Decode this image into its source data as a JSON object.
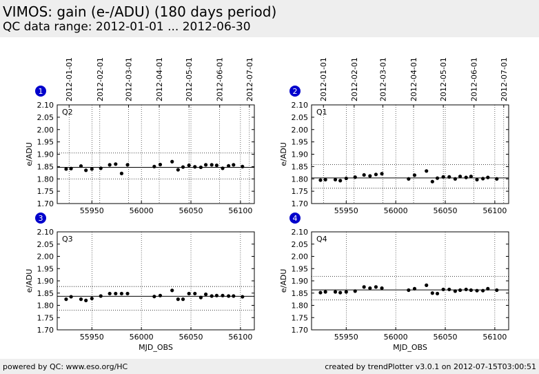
{
  "header": {
    "title": "VIMOS: gain (e-/ADU) (180 days period)",
    "subtitle": "QC data range: 2012-01-01 ... 2012-06-30"
  },
  "footer": {
    "left": "powered by QC: www.eso.org/HC",
    "right": "created by trendPlotter v3.0.1 on 2012-07-15T03:00:51"
  },
  "colors": {
    "panel_background": "#eeeeee",
    "marker_badge": "#0000cc",
    "data": "#000000"
  },
  "chart_data": [
    {
      "type": "scatter",
      "badge": "1",
      "label": "Q2",
      "ylabel": "e/ADU",
      "xlabel": "",
      "xlim": [
        55915,
        56114
      ],
      "ylim": [
        1.7,
        2.1
      ],
      "yticks": [
        "1.70",
        "1.75",
        "1.80",
        "1.85",
        "1.90",
        "1.95",
        "2.00",
        "2.05",
        "2.10"
      ],
      "xticks": [
        "55950",
        "56000",
        "56050",
        "56100"
      ],
      "date_ticks": [
        "2012-01-01",
        "2012-02-01",
        "2012-03-01",
        "2012-04-01",
        "2012-05-01",
        "2012-06-01",
        "2012-07-01"
      ],
      "mean": 1.847,
      "lower": 1.8,
      "upper": 1.905,
      "x": [
        55924,
        55929,
        55939,
        55944,
        55950,
        55959,
        55968,
        55974,
        55980,
        55986,
        56013,
        56019,
        56031,
        56037,
        56042,
        56048,
        56054,
        56060,
        56065,
        56071,
        56076,
        56082,
        56088,
        56093,
        56102
      ],
      "y": [
        1.84,
        1.842,
        1.852,
        1.835,
        1.84,
        1.843,
        1.857,
        1.86,
        1.822,
        1.857,
        1.85,
        1.858,
        1.87,
        1.837,
        1.848,
        1.855,
        1.849,
        1.847,
        1.857,
        1.857,
        1.855,
        1.843,
        1.853,
        1.857,
        1.85
      ]
    },
    {
      "type": "scatter",
      "badge": "2",
      "label": "Q1",
      "ylabel": "e/ADU",
      "xlabel": "",
      "xlim": [
        55915,
        56114
      ],
      "ylim": [
        1.7,
        2.1
      ],
      "yticks": [
        "1.70",
        "1.75",
        "1.80",
        "1.85",
        "1.90",
        "1.95",
        "2.00",
        "2.05",
        "2.10"
      ],
      "xticks": [
        "55950",
        "56000",
        "56050",
        "56100"
      ],
      "date_ticks": [
        "2012-01-01",
        "2012-02-01",
        "2012-03-01",
        "2012-04-01",
        "2012-05-01",
        "2012-06-01",
        "2012-07-01"
      ],
      "mean": 1.804,
      "lower": 1.762,
      "upper": 1.858,
      "x": [
        55924,
        55929,
        55939,
        55944,
        55950,
        55959,
        55968,
        55974,
        55980,
        55986,
        56013,
        56019,
        56031,
        56037,
        56042,
        56048,
        56054,
        56060,
        56065,
        56071,
        56076,
        56082,
        56088,
        56093,
        56102
      ],
      "y": [
        1.795,
        1.797,
        1.797,
        1.793,
        1.802,
        1.807,
        1.816,
        1.812,
        1.818,
        1.821,
        1.8,
        1.815,
        1.832,
        1.789,
        1.803,
        1.808,
        1.808,
        1.8,
        1.81,
        1.806,
        1.81,
        1.797,
        1.801,
        1.806,
        1.8
      ]
    },
    {
      "type": "scatter",
      "badge": "3",
      "label": "Q3",
      "ylabel": "e/ADU",
      "xlabel": "MJD_OBS",
      "xlim": [
        55915,
        56114
      ],
      "ylim": [
        1.7,
        2.1
      ],
      "yticks": [
        "1.70",
        "1.75",
        "1.80",
        "1.85",
        "1.90",
        "1.95",
        "2.00",
        "2.05",
        "2.10"
      ],
      "xticks": [
        "55950",
        "56000",
        "56050",
        "56100"
      ],
      "mean": 1.837,
      "lower": 1.78,
      "upper": 1.877,
      "x": [
        55924,
        55929,
        55939,
        55944,
        55950,
        55959,
        55968,
        55974,
        55980,
        55986,
        56013,
        56019,
        56031,
        56037,
        56042,
        56048,
        56054,
        56060,
        56065,
        56071,
        56076,
        56082,
        56088,
        56093,
        56102
      ],
      "y": [
        1.825,
        1.835,
        1.825,
        1.82,
        1.828,
        1.838,
        1.848,
        1.848,
        1.848,
        1.848,
        1.836,
        1.84,
        1.861,
        1.825,
        1.825,
        1.848,
        1.848,
        1.832,
        1.845,
        1.838,
        1.84,
        1.84,
        1.838,
        1.838,
        1.835
      ]
    },
    {
      "type": "scatter",
      "badge": "4",
      "label": "Q4",
      "ylabel": "e/ADU",
      "xlabel": "MJD_OBS",
      "xlim": [
        55915,
        56114
      ],
      "ylim": [
        1.7,
        2.1
      ],
      "yticks": [
        "1.70",
        "1.75",
        "1.80",
        "1.85",
        "1.90",
        "1.95",
        "2.00",
        "2.05",
        "2.10"
      ],
      "xticks": [
        "55950",
        "56000",
        "56050",
        "56100"
      ],
      "mean": 1.863,
      "lower": 1.822,
      "upper": 1.918,
      "x": [
        55924,
        55929,
        55939,
        55944,
        55950,
        55959,
        55968,
        55974,
        55980,
        55986,
        56013,
        56019,
        56031,
        56037,
        56042,
        56048,
        56054,
        56060,
        56065,
        56071,
        56076,
        56082,
        56088,
        56093,
        56102
      ],
      "y": [
        1.852,
        1.855,
        1.855,
        1.852,
        1.855,
        1.858,
        1.875,
        1.87,
        1.875,
        1.87,
        1.862,
        1.868,
        1.882,
        1.85,
        1.848,
        1.865,
        1.865,
        1.858,
        1.862,
        1.865,
        1.862,
        1.86,
        1.86,
        1.868,
        1.862
      ]
    }
  ]
}
